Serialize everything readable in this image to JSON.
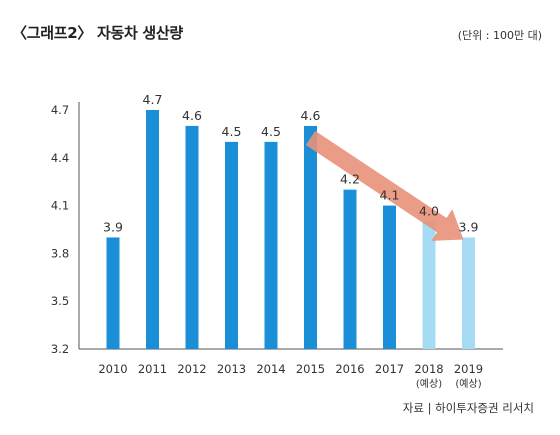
{
  "title": "〈그래프2〉 자동차 생산량",
  "unit_note": "(단위 : 100만 대)",
  "source": "자료 | 하이투자증권 리서치",
  "colors": {
    "actual_bar": "#1a8fd8",
    "forecast_bar": "#a6dcf3",
    "trend_arrow": "#e8917a",
    "axis": "#555555"
  },
  "chart_data": {
    "type": "bar",
    "categories": [
      "2010",
      "2011",
      "2012",
      "2013",
      "2014",
      "2015",
      "2016",
      "2017",
      "2018",
      "2019"
    ],
    "category_sublabels": [
      "",
      "",
      "",
      "",
      "",
      "",
      "",
      "",
      "(예상)",
      "(예상)"
    ],
    "values": [
      3.9,
      4.7,
      4.6,
      4.5,
      4.5,
      4.6,
      4.2,
      4.1,
      4.0,
      3.9
    ],
    "data_labels": [
      "3.9",
      "4.7",
      "4.6",
      "4.5",
      "4.5",
      "4.6",
      "4.2",
      "4.1",
      "4.0",
      "3.9"
    ],
    "forecast": [
      false,
      false,
      false,
      false,
      false,
      false,
      false,
      false,
      true,
      true
    ],
    "yticks": [
      "3.2",
      "3.5",
      "3.8",
      "4.1",
      "4.4",
      "4.7"
    ],
    "ylim": [
      3.2,
      4.7
    ],
    "grid": false,
    "trend_arrow": {
      "from_category": "2015",
      "to_category": "2019",
      "from_value": 4.6,
      "to_value": 3.9
    }
  }
}
